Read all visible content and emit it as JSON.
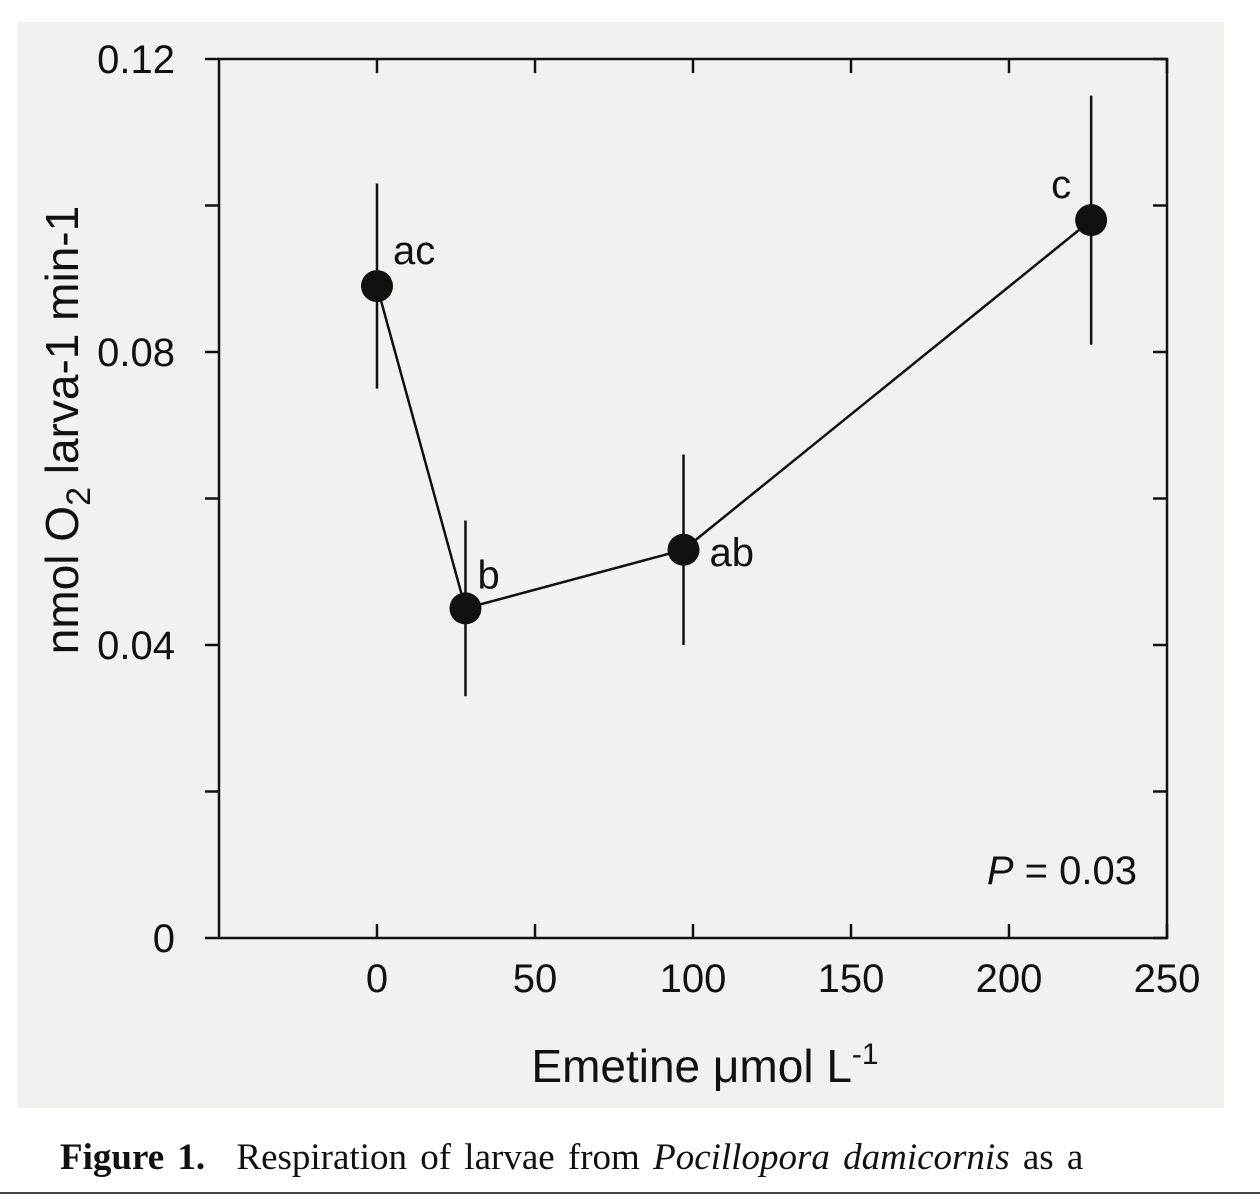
{
  "chart_data": {
    "type": "line",
    "title": "",
    "xlabel": "Emetine μmol L-1",
    "xlabel_parts": {
      "main": "Emetine μmol L",
      "sup": "-1"
    },
    "ylabel": "nmol O2 larva-1 min-1",
    "ylabel_parts": {
      "a": "nmol O",
      "sub": "2",
      "b": " larva-1 min-1"
    },
    "xlim": [
      -50,
      250
    ],
    "ylim": [
      0,
      0.12
    ],
    "x_ticks": [
      0,
      50,
      100,
      150,
      200,
      250
    ],
    "x_tick_labels": [
      "0",
      "50",
      "100",
      "150",
      "200",
      "250"
    ],
    "y_ticks": [
      0,
      0.04,
      0.08,
      0.12
    ],
    "y_tick_labels": [
      "0",
      "0.04",
      "0.08",
      "0.12"
    ],
    "y_minor_ticks": [
      0.02,
      0.06,
      0.1
    ],
    "grid": false,
    "series": [
      {
        "x": [
          0,
          28,
          97,
          226
        ],
        "y": [
          0.089,
          0.045,
          0.053,
          0.098
        ],
        "error_low": [
          0.075,
          0.033,
          0.04,
          0.081
        ],
        "error_high": [
          0.103,
          0.057,
          0.066,
          0.115
        ],
        "point_labels": [
          "ac",
          "b",
          "ab",
          "c"
        ],
        "color": "#111111"
      }
    ],
    "annotations": [
      {
        "text_prefix": "P",
        "text_suffix": " = 0.03",
        "position": "bottom-right"
      }
    ]
  },
  "caption": {
    "label": "Figure 1.",
    "text_before": "Respiration of larvae from",
    "species": "Pocillopora damicornis",
    "text_after": "as a"
  }
}
